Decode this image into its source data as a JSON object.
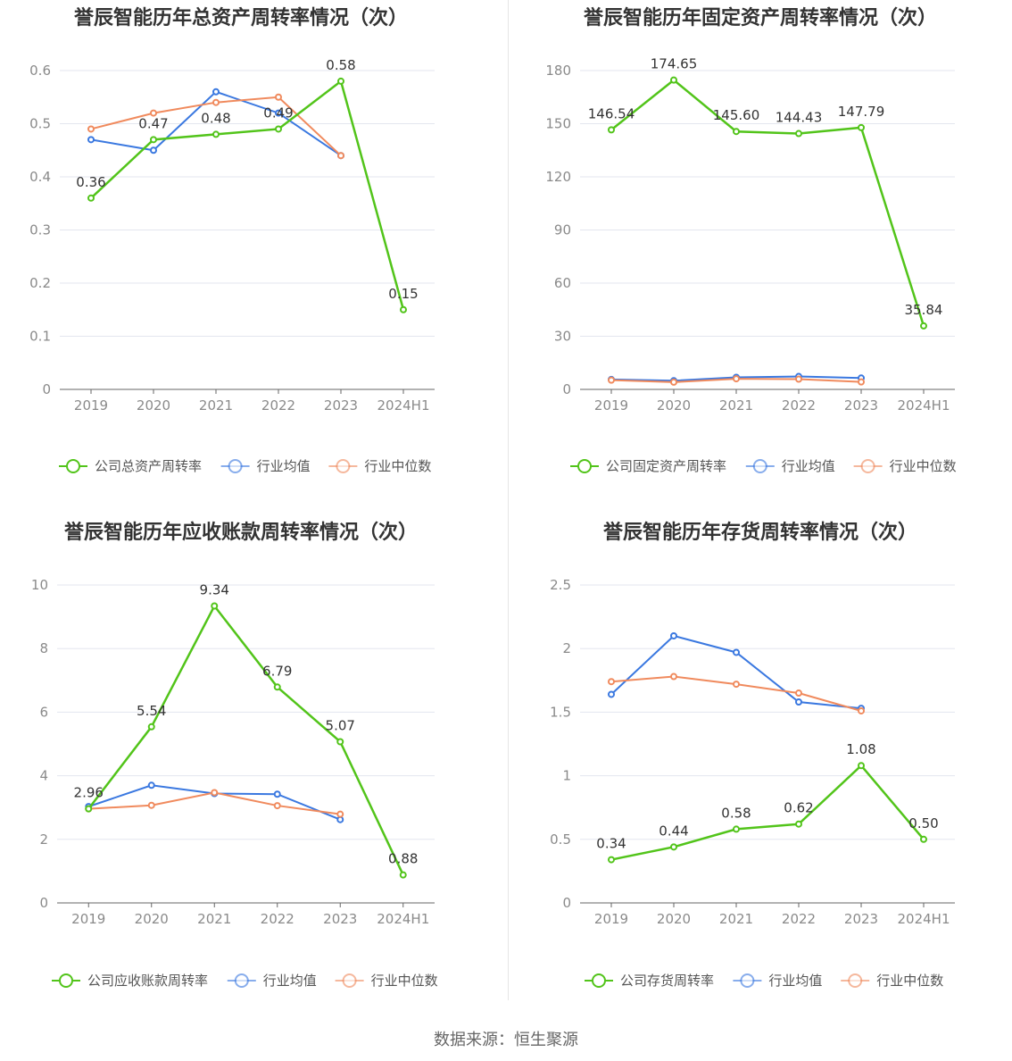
{
  "colors": {
    "company": "#52c41a",
    "industry_avg": "#3a78e0",
    "industry_median": "#f08a5d",
    "grid": "#e3e6ef",
    "axis": "#666666"
  },
  "legend": {
    "avg": "行业均值",
    "median": "行业中位数"
  },
  "source": "数据来源：恒生聚源",
  "chart_data": [
    {
      "type": "line",
      "title": "誉辰智能历年总资产周转率情况（次）",
      "categories": [
        "2019",
        "2020",
        "2021",
        "2022",
        "2023",
        "2024H1"
      ],
      "ylim": [
        0,
        0.6
      ],
      "yticks": [
        0,
        0.1,
        0.2,
        0.3,
        0.4,
        0.5,
        0.6
      ],
      "ytick_labels": [
        "0",
        "0.1",
        "0.2",
        "0.3",
        "0.4",
        "0.5",
        "0.6"
      ],
      "series": [
        {
          "name": "公司总资产周转率",
          "key": "company",
          "values": [
            0.36,
            0.47,
            0.48,
            0.49,
            0.58,
            0.15
          ],
          "labels": [
            "0.36",
            "0.47",
            "0.48",
            "0.49",
            "0.58",
            "0.15"
          ]
        },
        {
          "name": "行业均值",
          "key": "industry_avg",
          "values": [
            0.47,
            0.45,
            0.56,
            0.52,
            0.44,
            null
          ]
        },
        {
          "name": "行业中位数",
          "key": "industry_median",
          "values": [
            0.49,
            0.52,
            0.54,
            0.55,
            0.44,
            null
          ]
        }
      ],
      "legend_position": "bottom",
      "grid": true
    },
    {
      "type": "line",
      "title": "誉辰智能历年固定资产周转率情况（次）",
      "categories": [
        "2019",
        "2020",
        "2021",
        "2022",
        "2023",
        "2024H1"
      ],
      "ylim": [
        0,
        180
      ],
      "yticks": [
        0,
        30,
        60,
        90,
        120,
        150,
        180
      ],
      "ytick_labels": [
        "0",
        "30",
        "60",
        "90",
        "120",
        "150",
        "180"
      ],
      "series": [
        {
          "name": "公司固定资产周转率",
          "key": "company",
          "values": [
            146.54,
            174.65,
            145.6,
            144.43,
            147.79,
            35.84
          ],
          "labels": [
            "146.54",
            "174.65",
            "145.60",
            "144.43",
            "147.79",
            "35.84"
          ]
        },
        {
          "name": "行业均值",
          "key": "industry_avg",
          "values": [
            5.6,
            4.9,
            6.8,
            7.3,
            6.4,
            null
          ]
        },
        {
          "name": "行业中位数",
          "key": "industry_median",
          "values": [
            5.2,
            4.1,
            6.0,
            5.8,
            4.2,
            null
          ]
        }
      ],
      "legend_position": "bottom",
      "grid": true
    },
    {
      "type": "line",
      "title": "誉辰智能历年应收账款周转率情况（次）",
      "categories": [
        "2019",
        "2020",
        "2021",
        "2022",
        "2023",
        "2024H1"
      ],
      "ylim": [
        0,
        10
      ],
      "yticks": [
        0,
        2,
        4,
        6,
        8,
        10
      ],
      "ytick_labels": [
        "0",
        "2",
        "4",
        "6",
        "8",
        "10"
      ],
      "series": [
        {
          "name": "公司应收账款周转率",
          "key": "company",
          "values": [
            2.96,
            5.54,
            9.34,
            6.79,
            5.07,
            0.88
          ],
          "labels": [
            "2.96",
            "5.54",
            "9.34",
            "6.79",
            "5.07",
            "0.88"
          ]
        },
        {
          "name": "行业均值",
          "key": "industry_avg",
          "values": [
            3.03,
            3.7,
            3.44,
            3.42,
            2.62,
            null
          ]
        },
        {
          "name": "行业中位数",
          "key": "industry_median",
          "values": [
            2.96,
            3.07,
            3.47,
            3.06,
            2.79,
            null
          ]
        }
      ],
      "legend_position": "bottom",
      "grid": true
    },
    {
      "type": "line",
      "title": "誉辰智能历年存货周转率情况（次）",
      "categories": [
        "2019",
        "2020",
        "2021",
        "2022",
        "2023",
        "2024H1"
      ],
      "ylim": [
        0,
        2.5
      ],
      "yticks": [
        0,
        0.5,
        1,
        1.5,
        2,
        2.5
      ],
      "ytick_labels": [
        "0",
        "0.5",
        "1",
        "1.5",
        "2",
        "2.5"
      ],
      "series": [
        {
          "name": "公司存货周转率",
          "key": "company",
          "values": [
            0.34,
            0.44,
            0.58,
            0.62,
            1.08,
            0.5
          ],
          "labels": [
            "0.34",
            "0.44",
            "0.58",
            "0.62",
            "1.08",
            "0.50"
          ]
        },
        {
          "name": "行业均值",
          "key": "industry_avg",
          "values": [
            1.64,
            2.1,
            1.97,
            1.58,
            1.53,
            null
          ]
        },
        {
          "name": "行业中位数",
          "key": "industry_median",
          "values": [
            1.74,
            1.78,
            1.72,
            1.65,
            1.51,
            null
          ]
        }
      ],
      "legend_position": "bottom",
      "grid": true
    }
  ]
}
